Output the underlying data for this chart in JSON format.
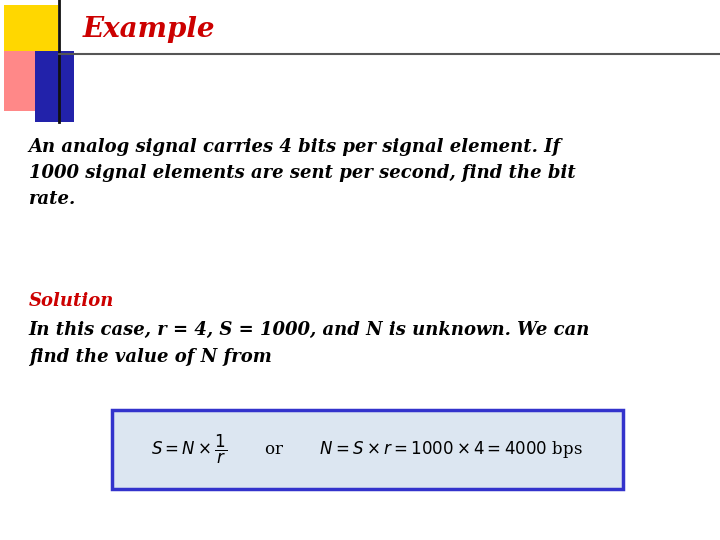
{
  "title": "Example",
  "title_color": "#cc0000",
  "title_fontsize": 20,
  "bg_color": "#ffffff",
  "para1": "An analog signal carries 4 bits per signal element. If\n1000 signal elements are sent per second, find the bit\nrate.",
  "para1_color": "#000000",
  "para1_fontsize": 13,
  "solution_label": "Solution",
  "solution_color": "#cc0000",
  "solution_fontsize": 13,
  "para2": "In this case, r = 4, S = 1000, and N is unknown. We can\nfind the value of N from",
  "para2_color": "#000000",
  "para2_fontsize": 13,
  "formula_box_bg": "#dce6f1",
  "formula_box_border": "#3333cc",
  "formula_text": "$S = N \\times \\dfrac{1}{r}$       or       $N = S \\times r = 1000 \\times 4 = 4000$ bps",
  "formula_fontsize": 12,
  "formula_color": "#000000",
  "yellow_color": "#FFD700",
  "pink_color": "#FF8888",
  "blue_color": "#2222aa",
  "vline_color": "#111111",
  "hline_color": "#555555"
}
